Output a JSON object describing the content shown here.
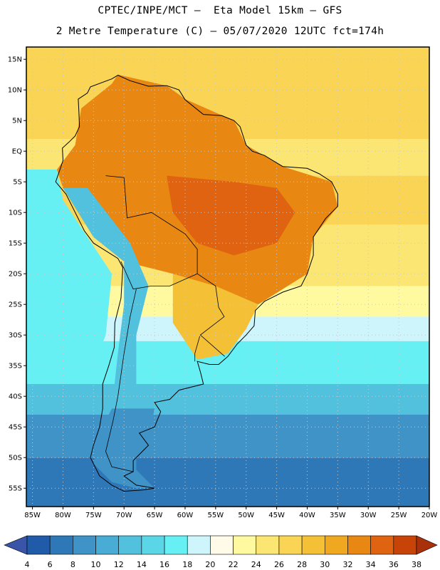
{
  "header": {
    "line1": "CPTEC/INPE/MCT –  Eta Model 15km – GFS",
    "line2": "2 Metre Temperature (C) – 05/07/2020 12UTC fct=174h"
  },
  "map": {
    "lon_range": [
      -86,
      -20
    ],
    "lat_range": [
      -58,
      17
    ],
    "lon_ticks": [
      {
        "value": -85,
        "label": "85W"
      },
      {
        "value": -80,
        "label": "80W"
      },
      {
        "value": -75,
        "label": "75W"
      },
      {
        "value": -70,
        "label": "70W"
      },
      {
        "value": -65,
        "label": "65W"
      },
      {
        "value": -60,
        "label": "60W"
      },
      {
        "value": -55,
        "label": "55W"
      },
      {
        "value": -50,
        "label": "50W"
      },
      {
        "value": -45,
        "label": "45W"
      },
      {
        "value": -40,
        "label": "40W"
      },
      {
        "value": -35,
        "label": "35W"
      },
      {
        "value": -30,
        "label": "30W"
      },
      {
        "value": -25,
        "label": "25W"
      },
      {
        "value": -20,
        "label": "20W"
      }
    ],
    "lat_ticks": [
      {
        "value": 15,
        "label": "15N"
      },
      {
        "value": 10,
        "label": "10N"
      },
      {
        "value": 5,
        "label": "5N"
      },
      {
        "value": 0,
        "label": "EQ"
      },
      {
        "value": -5,
        "label": "5S"
      },
      {
        "value": -10,
        "label": "10S"
      },
      {
        "value": -15,
        "label": "15S"
      },
      {
        "value": -20,
        "label": "20S"
      },
      {
        "value": -25,
        "label": "25S"
      },
      {
        "value": -30,
        "label": "30S"
      },
      {
        "value": -35,
        "label": "35S"
      },
      {
        "value": -40,
        "label": "40S"
      },
      {
        "value": -45,
        "label": "45S"
      },
      {
        "value": -50,
        "label": "50S"
      },
      {
        "value": -55,
        "label": "55S"
      }
    ],
    "temperature_bands": [
      {
        "lat_max": 17,
        "lat_min": 2,
        "value": 26
      },
      {
        "lat_max": 2,
        "lat_min": -4,
        "value": 24
      },
      {
        "lat_max": -4,
        "lat_min": -12,
        "value": 26
      },
      {
        "lat_max": -12,
        "lat_min": -22,
        "value": 24
      },
      {
        "lat_max": -22,
        "lat_min": -27,
        "value": 22
      },
      {
        "lat_max": -27,
        "lat_min": -31,
        "value": 18
      },
      {
        "lat_max": -31,
        "lat_min": -38,
        "value": 16
      },
      {
        "lat_max": -38,
        "lat_min": -43,
        "value": 12
      },
      {
        "lat_max": -43,
        "lat_min": -50,
        "value": 8
      },
      {
        "lat_max": -50,
        "lat_min": -58,
        "value": 6
      }
    ],
    "ocean_pacific_value": 16,
    "land_regions": [
      {
        "name": "northern-south-america",
        "value": 32
      },
      {
        "name": "central-brazil",
        "value": 34
      },
      {
        "name": "southern-brazil",
        "value": 28
      },
      {
        "name": "andes",
        "value": 12
      },
      {
        "name": "patagonia",
        "value": 8
      }
    ]
  },
  "colorbar": {
    "levels": [
      "4",
      "6",
      "8",
      "10",
      "12",
      "14",
      "16",
      "18",
      "20",
      "22",
      "24",
      "26",
      "28",
      "30",
      "32",
      "34",
      "36",
      "38"
    ],
    "colors": [
      "#1f5ba8",
      "#2f78b8",
      "#3f93c7",
      "#48acd4",
      "#52c1de",
      "#5bd6e6",
      "#66f0f4",
      "#cdf5fb",
      "#fffbe8",
      "#fffaa0",
      "#fbe673",
      "#f9d455",
      "#f4c036",
      "#f0a820",
      "#e88712",
      "#df6310",
      "#c84308",
      "#a8300a"
    ],
    "under_color": "#3a55a8",
    "over_color": "#a8300a"
  },
  "colors": {
    "coast": "#000000",
    "grid": "#c8c8c8",
    "frame": "#000000"
  }
}
